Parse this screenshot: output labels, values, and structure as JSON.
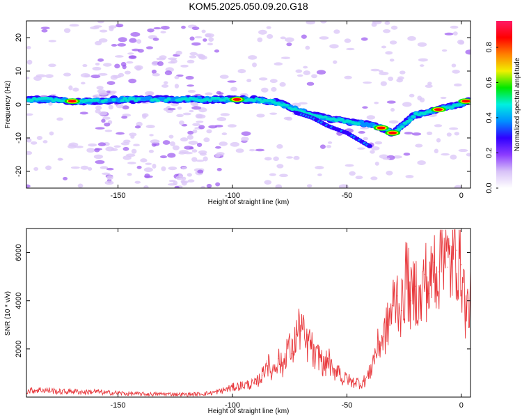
{
  "chart_data": [
    {
      "type": "heatmap",
      "title": "KOM5.2025.050.09.20.G18",
      "xlabel": "Height of straight line (km)",
      "ylabel": "Frequency (Hz)",
      "xlim": [
        -190,
        4
      ],
      "ylim": [
        -25,
        25
      ],
      "xticks": [
        -150,
        -100,
        -50,
        0
      ],
      "yticks": [
        -20,
        -10,
        0,
        10,
        20
      ],
      "grid": false,
      "colorbar": {
        "label": "Normalized spectral amplitude",
        "range": [
          0,
          0.95
        ],
        "ticks": [
          "0.0",
          "0.2",
          "0.4",
          "0.6",
          "0.8"
        ],
        "colormap": [
          "#ffffff",
          "#d8c2f8",
          "#8c3cff",
          "#3000ff",
          "#0090ff",
          "#00f0e0",
          "#00e800",
          "#f0f000",
          "#ff8000",
          "#ff0000",
          "#ff1a66"
        ]
      },
      "ridge": {
        "x": [
          -190,
          -180,
          -170,
          -160,
          -150,
          -140,
          -130,
          -120,
          -110,
          -100,
          -90,
          -80,
          -70,
          -60,
          -50,
          -40,
          -35,
          -30,
          -25,
          -20,
          -10,
          0,
          4
        ],
        "y": [
          1.5,
          1.5,
          1,
          1,
          1.5,
          1.5,
          1.5,
          1.5,
          1.5,
          1.5,
          1.5,
          0.5,
          -2,
          -4,
          -5,
          -6,
          -7,
          -8.5,
          -6,
          -3,
          -1.5,
          0,
          1.5
        ]
      },
      "branch": {
        "x": [
          -72,
          -65,
          -58,
          -50,
          -45,
          -40
        ],
        "y": [
          -2.5,
          -4,
          -6.5,
          -8.5,
          -10.5,
          -12.5
        ]
      },
      "red_cores": [
        {
          "x": -170,
          "y": 1
        },
        {
          "x": -98,
          "y": 1.5
        },
        {
          "x": -35,
          "y": -7
        },
        {
          "x": -30,
          "y": -8.5
        },
        {
          "x": -10,
          "y": -1.5
        },
        {
          "x": 2,
          "y": 1
        }
      ]
    },
    {
      "type": "line",
      "xlabel": "Height of straight line (km)",
      "ylabel": "SNR (10 * v/v)",
      "xlim": [
        -190,
        4
      ],
      "ylim": [
        0,
        7000
      ],
      "xticks": [
        -150,
        -100,
        -50,
        0
      ],
      "yticks": [
        2000,
        4000,
        6000
      ],
      "grid": false,
      "series": [
        {
          "color": "#e8383c",
          "x": [
            -190,
            -185,
            -180,
            -175,
            -170,
            -165,
            -160,
            -155,
            -150,
            -145,
            -140,
            -135,
            -130,
            -125,
            -120,
            -115,
            -110,
            -105,
            -100,
            -95,
            -90,
            -87,
            -85,
            -83,
            -80,
            -78,
            -76,
            -74,
            -72,
            -70,
            -68,
            -66,
            -64,
            -62,
            -60,
            -58,
            -56,
            -54,
            -52,
            -50,
            -48,
            -46,
            -44,
            -42,
            -40,
            -38,
            -36,
            -34,
            -32,
            -30,
            -28,
            -26,
            -24,
            -22,
            -20,
            -18,
            -16,
            -14,
            -12,
            -10,
            -8,
            -6,
            -4,
            -2,
            0,
            2,
            4
          ],
          "values": [
            250,
            300,
            280,
            220,
            250,
            200,
            230,
            180,
            170,
            140,
            130,
            120,
            130,
            120,
            110,
            130,
            160,
            250,
            400,
            500,
            550,
            900,
            1500,
            1000,
            1600,
            1200,
            2200,
            1800,
            2600,
            3000,
            2100,
            2300,
            1500,
            1800,
            1200,
            1600,
            900,
            1300,
            700,
            800,
            600,
            650,
            550,
            700,
            1000,
            1700,
            2200,
            2500,
            3000,
            3800,
            4200,
            3600,
            5200,
            4000,
            4600,
            3700,
            5100,
            4300,
            5600,
            5200,
            6900,
            5400,
            5600,
            6100,
            5500,
            3500,
            3900
          ]
        }
      ]
    }
  ]
}
